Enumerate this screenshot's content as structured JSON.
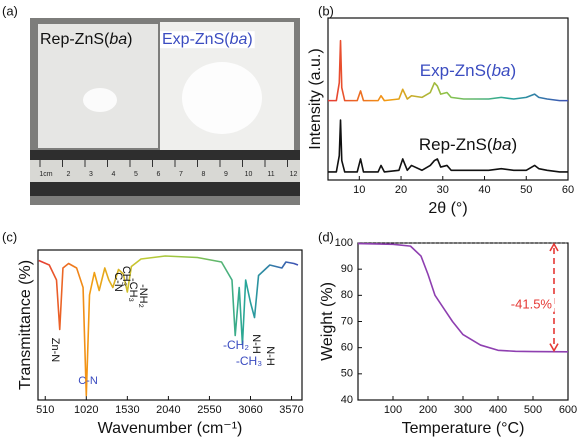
{
  "chart_data": [
    {
      "type": "photo",
      "panel": "(a)",
      "labels": [
        {
          "parts": [
            "Rep-ZnS(",
            "ba",
            ")"
          ],
          "color": "#111111"
        },
        {
          "parts": [
            "Exp-ZnS(",
            "ba",
            ")"
          ],
          "color": "#3b4cc0"
        }
      ],
      "ruler": [
        "1cm",
        "2",
        "3",
        "4",
        "5",
        "6",
        "7",
        "8",
        "9",
        "10",
        "11",
        "12"
      ]
    },
    {
      "type": "line",
      "panel": "(b)",
      "ylabel": "Intensity (a.u.)",
      "xlabel": "2θ (°)",
      "x": [
        2.5,
        4.5,
        5.2,
        5.5,
        5.8,
        6.5,
        9.5,
        10.3,
        11,
        14.5,
        15.2,
        16,
        19.5,
        20.4,
        21.5,
        22.5,
        25,
        27,
        28,
        28.7,
        29.5,
        31,
        32,
        35,
        38,
        41,
        44,
        47,
        50,
        52,
        53,
        55,
        58,
        60
      ],
      "xlim": [
        2.5,
        60
      ],
      "xticks": [
        10,
        20,
        30,
        40,
        50,
        60
      ],
      "ylim": [
        0,
        10
      ],
      "series": [
        {
          "name": [
            "Exp-ZnS(",
            "ba",
            ")"
          ],
          "name_color": "#3b4cc0",
          "colors": [
            "#e53935",
            "#f39c12",
            "#8bc34a",
            "#26a69a",
            "#3f51b5"
          ],
          "values": [
            4.9,
            4.9,
            6,
            8.6,
            5.7,
            4.9,
            4.9,
            5.5,
            4.9,
            4.9,
            5.2,
            4.9,
            5.0,
            5.6,
            5.0,
            5.2,
            5.1,
            5.4,
            6.0,
            5.8,
            5.3,
            5.4,
            5.1,
            5.0,
            5.0,
            5.0,
            5.1,
            5.0,
            5.1,
            5.3,
            5.1,
            5.0,
            4.9,
            4.9
          ]
        },
        {
          "name": [
            "Rep-ZnS(",
            "ba",
            ")"
          ],
          "name_color": "#111111",
          "color": "#111111",
          "values": [
            0.5,
            0.5,
            1.5,
            3.7,
            1.2,
            0.5,
            0.5,
            1.3,
            0.5,
            0.5,
            0.9,
            0.5,
            0.6,
            1.3,
            0.6,
            0.9,
            0.6,
            0.9,
            1.2,
            1.3,
            0.8,
            0.9,
            0.6,
            0.6,
            0.6,
            0.6,
            0.7,
            0.6,
            0.6,
            0.9,
            0.7,
            0.6,
            0.5,
            0.5
          ]
        }
      ]
    },
    {
      "type": "line",
      "panel": "(c)",
      "ylabel": "Transmittance (%)",
      "xlabel": "Wavenumber (cm⁻¹)",
      "x": [
        430,
        560,
        650,
        690,
        730,
        800,
        900,
        980,
        1020,
        1060,
        1120,
        1180,
        1250,
        1300,
        1350,
        1420,
        1480,
        1530,
        1580,
        1700,
        2000,
        2400,
        2700,
        2830,
        2870,
        2920,
        2960,
        3000,
        3060,
        3110,
        3160,
        3300,
        3450,
        3500,
        3600,
        3650
      ],
      "xlim": [
        420,
        3700
      ],
      "xticks": [
        510,
        1020,
        1530,
        2040,
        2550,
        3060,
        3570
      ],
      "ylim": [
        0,
        10
      ],
      "series": [
        {
          "colors": [
            "#e53935",
            "#f39c12",
            "#c0ca33",
            "#8bc34a",
            "#26a69a",
            "#3f51b5"
          ],
          "values": [
            9.3,
            9.0,
            8.0,
            4.7,
            8.8,
            9.1,
            8.8,
            7.5,
            0.3,
            7.0,
            8.5,
            7.3,
            8.8,
            8.0,
            7.5,
            8.7,
            8.4,
            7.2,
            8.9,
            9.4,
            9.6,
            9.5,
            9.2,
            8.0,
            4.3,
            7.5,
            3.7,
            8.0,
            6.5,
            5.5,
            8.3,
            9.0,
            8.8,
            9.2,
            9.1,
            9.0
          ]
        }
      ],
      "annotations": [
        {
          "text": "Zn-N",
          "color": "#111111"
        },
        {
          "text": "C-N",
          "color": "#3b4cc0"
        },
        {
          "text": "C-N",
          "color": "#111111"
        },
        {
          "text": "CH₃",
          "color": "#111111"
        },
        {
          "text": "-CH₃",
          "color": "#111111"
        },
        {
          "text": "-NH₂",
          "color": "#111111"
        },
        {
          "text": "-CH₂",
          "color": "#3b4cc0"
        },
        {
          "text": "-CH₃",
          "color": "#3b4cc0"
        },
        {
          "text": "N-H",
          "color": "#111111"
        },
        {
          "text": "N-H",
          "color": "#111111"
        }
      ]
    },
    {
      "type": "line",
      "panel": "(d)",
      "ylabel": "Weight (%)",
      "xlabel": "Temperature (°C)",
      "x": [
        0,
        100,
        150,
        180,
        200,
        220,
        250,
        270,
        300,
        350,
        400,
        450,
        500,
        600
      ],
      "xlim": [
        0,
        600
      ],
      "xticks": [
        100,
        200,
        300,
        400,
        500,
        600
      ],
      "ylim": [
        40,
        100
      ],
      "yticks": [
        40,
        50,
        60,
        70,
        80,
        90,
        100
      ],
      "series": [
        {
          "color": "#8e3fb0",
          "values": [
            99.8,
            99.5,
            98.8,
            95,
            88,
            80,
            74,
            70,
            65,
            61,
            59,
            58.6,
            58.5,
            58.4
          ]
        }
      ],
      "reference_line": 100,
      "arrow": {
        "text": "-41.5%",
        "x": 560,
        "from": 100,
        "to": 58.5,
        "color": "#e53935"
      }
    }
  ]
}
